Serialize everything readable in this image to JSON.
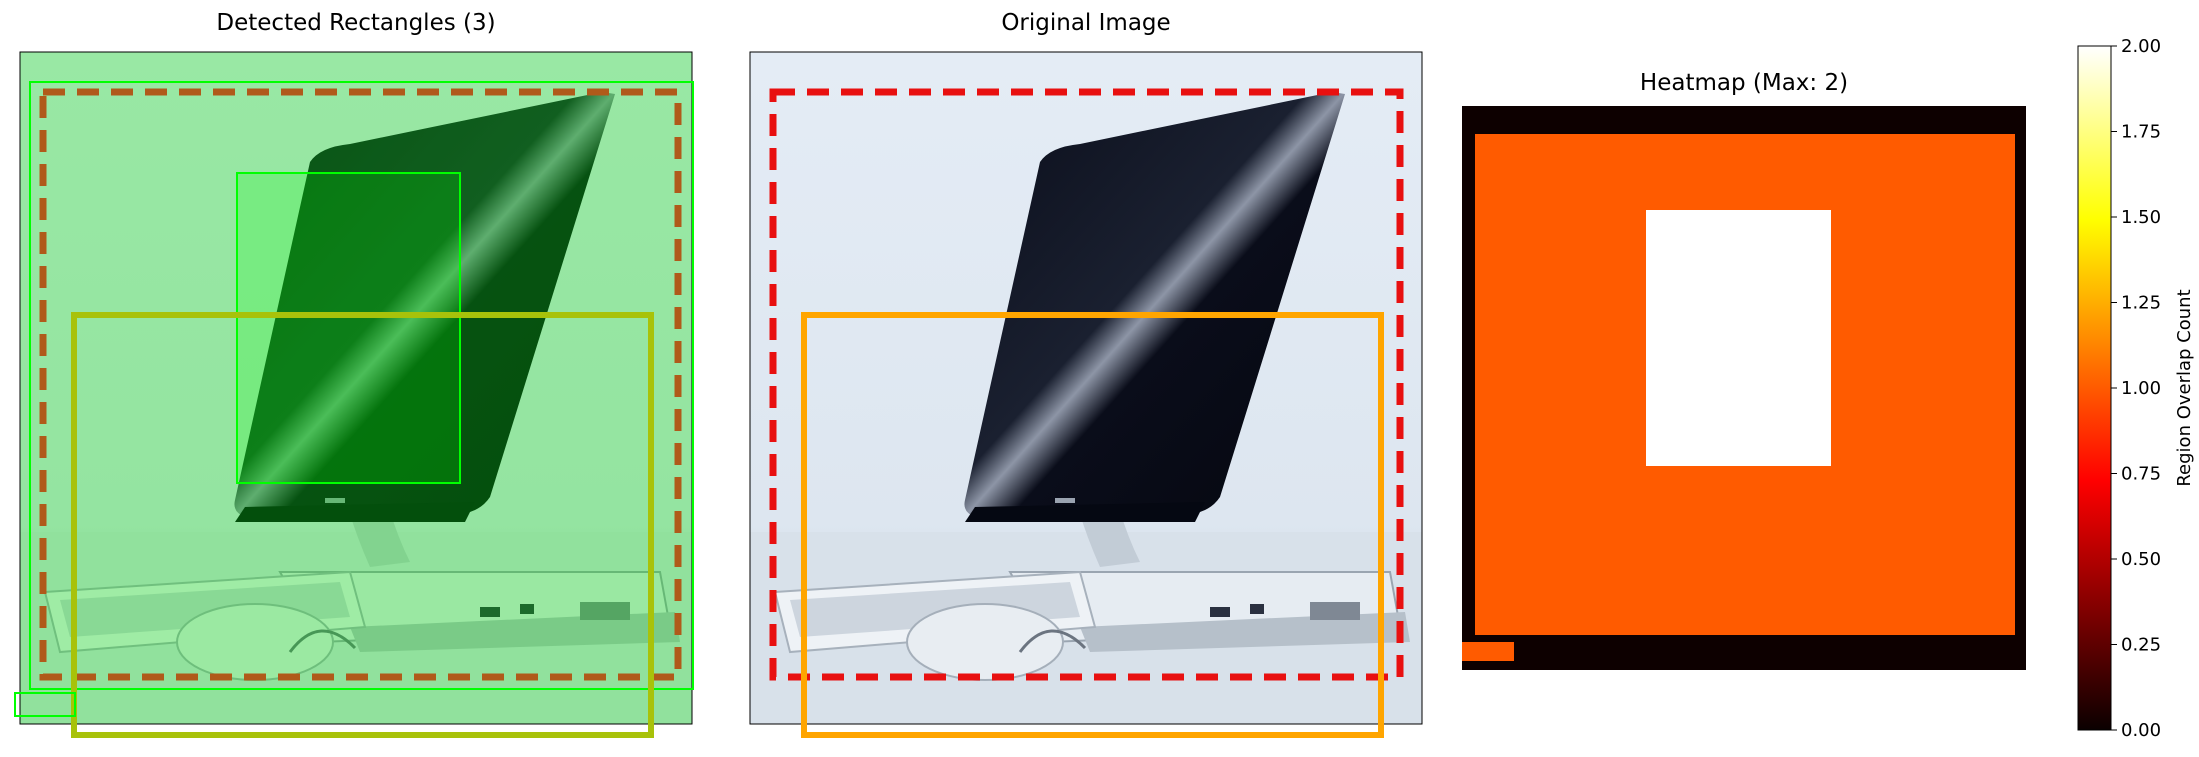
{
  "panels": {
    "detected_title": "Detected Rectangles (3)",
    "original_title": "Original Image",
    "heatmap_title": "Heatmap (Max: 2)"
  },
  "colors": {
    "green_tint": "#7fe07f",
    "green_box": "#00ff00",
    "brown_dashed": "#b05a1a",
    "gold_box": "#a8c20a",
    "red_dashed": "#e81010",
    "orange_box": "#ffa500",
    "heat_zero": "#0d0000",
    "heat_one": "#ff5b00",
    "heat_two": "#ffffff"
  },
  "chart_data": {
    "type": "heatmap",
    "title": "Heatmap (Max: 2)",
    "colormap": "hot",
    "vmin": 0,
    "vmax": 2,
    "colorbar_label": "Region Overlap Count",
    "colorbar_ticks": [
      "0.00",
      "0.25",
      "0.50",
      "0.75",
      "1.00",
      "1.25",
      "1.50",
      "1.75",
      "2.00"
    ],
    "regions": [
      {
        "overlap_count": 0,
        "description": "background frame"
      },
      {
        "overlap_count": 1,
        "description": "large outer region"
      },
      {
        "overlap_count": 2,
        "description": "central overlap region"
      },
      {
        "overlap_count": 1,
        "description": "small bottom-left region"
      }
    ]
  }
}
